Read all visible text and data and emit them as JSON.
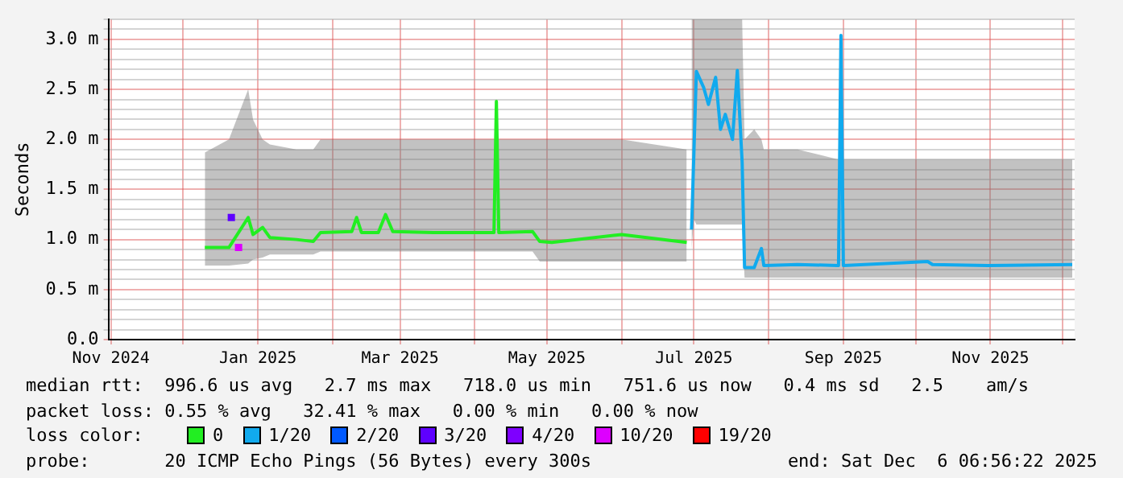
{
  "chart_data": {
    "type": "line",
    "ylabel": "Seconds",
    "legend_title": "loss color:",
    "legend": "bottom",
    "grid": true,
    "line_style": "solid",
    "xlim": [
      "2024-10-31",
      "2025-12-06"
    ],
    "xticks": [
      {
        "value": "2024-11-01",
        "label": "Nov 2024"
      },
      {
        "value": "2024-12-01",
        "label": null
      },
      {
        "value": "2025-01-01",
        "label": "Jan 2025"
      },
      {
        "value": "2025-02-01",
        "label": null
      },
      {
        "value": "2025-03-01",
        "label": "Mar 2025"
      },
      {
        "value": "2025-04-01",
        "label": null
      },
      {
        "value": "2025-05-01",
        "label": "May 2025"
      },
      {
        "value": "2025-06-01",
        "label": null
      },
      {
        "value": "2025-07-01",
        "label": "Jul 2025"
      },
      {
        "value": "2025-08-01",
        "label": null
      },
      {
        "value": "2025-09-01",
        "label": "Sep 2025"
      },
      {
        "value": "2025-10-01",
        "label": null
      },
      {
        "value": "2025-11-01",
        "label": "Nov 2025"
      },
      {
        "value": "2025-12-01",
        "label": null
      }
    ],
    "ylim": [
      0,
      3.2
    ],
    "yticks": [
      {
        "value": 0,
        "label": "0.0"
      },
      {
        "value": 0.1,
        "label": null
      },
      {
        "value": 0.2,
        "label": null
      },
      {
        "value": 0.3,
        "label": null
      },
      {
        "value": 0.4,
        "label": null
      },
      {
        "value": 0.5,
        "label": "0.5 m"
      },
      {
        "value": 0.6,
        "label": null
      },
      {
        "value": 0.7,
        "label": null
      },
      {
        "value": 0.8,
        "label": null
      },
      {
        "value": 0.9,
        "label": null
      },
      {
        "value": 1.0,
        "label": "1.0 m"
      },
      {
        "value": 1.1,
        "label": null
      },
      {
        "value": 1.2,
        "label": null
      },
      {
        "value": 1.3,
        "label": null
      },
      {
        "value": 1.4,
        "label": null
      },
      {
        "value": 1.5,
        "label": "1.5 m"
      },
      {
        "value": 1.6,
        "label": null
      },
      {
        "value": 1.7,
        "label": null
      },
      {
        "value": 1.8,
        "label": null
      },
      {
        "value": 1.9,
        "label": null
      },
      {
        "value": 2.0,
        "label": "2.0 m"
      },
      {
        "value": 2.1,
        "label": null
      },
      {
        "value": 2.2,
        "label": null
      },
      {
        "value": 2.3,
        "label": null
      },
      {
        "value": 2.4,
        "label": null
      },
      {
        "value": 2.5,
        "label": "2.5 m"
      },
      {
        "value": 2.6,
        "label": null
      },
      {
        "value": 2.7,
        "label": null
      },
      {
        "value": 2.8,
        "label": null
      },
      {
        "value": 2.9,
        "label": null
      },
      {
        "value": 3.0,
        "label": "3.0 m"
      },
      {
        "value": 3.1,
        "label": null
      },
      {
        "value": 3.2,
        "label": null
      }
    ],
    "series": [
      {
        "name": "0",
        "color": "#22ee22",
        "x": [
          "2024-12-10",
          "2024-12-20",
          "2024-12-28",
          "2024-12-30",
          "2025-01-03",
          "2025-01-06",
          "2025-01-17",
          "2025-01-24",
          "2025-01-27",
          "2025-02-09",
          "2025-02-11",
          "2025-02-13",
          "2025-02-20",
          "2025-02-23",
          "2025-02-26",
          "2025-03-15",
          "2025-04-09",
          "2025-04-10",
          "2025-04-11",
          "2025-04-25",
          "2025-04-28",
          "2025-05-03",
          "2025-06-01",
          "2025-06-28"
        ],
        "values": [
          0.92,
          0.92,
          1.22,
          1.05,
          1.12,
          1.02,
          1.0,
          0.98,
          1.07,
          1.08,
          1.22,
          1.07,
          1.07,
          1.25,
          1.08,
          1.07,
          1.07,
          2.38,
          1.07,
          1.08,
          0.98,
          0.97,
          1.05,
          0.97
        ],
        "lower": [
          0.74,
          0.74,
          0.76,
          0.8,
          0.82,
          0.85,
          0.85,
          0.85,
          0.88,
          0.88,
          0.88,
          0.88,
          0.88,
          0.88,
          0.88,
          0.88,
          0.88,
          0.88,
          0.88,
          0.88,
          0.78,
          0.78,
          0.78,
          0.78
        ],
        "upper": [
          1.87,
          2.0,
          2.5,
          2.2,
          2.0,
          1.95,
          1.9,
          1.9,
          2.0,
          2.0,
          2.0,
          2.0,
          2.0,
          2.0,
          2.0,
          2.0,
          2.0,
          2.0,
          2.0,
          2.0,
          2.0,
          2.0,
          2.0,
          1.9
        ]
      },
      {
        "name": "1/20",
        "color": "#11aaee",
        "x": [
          "2025-06-30",
          "2025-07-01",
          "2025-07-02",
          "2025-07-05",
          "2025-07-07",
          "2025-07-10",
          "2025-07-12",
          "2025-07-14",
          "2025-07-17",
          "2025-07-19",
          "2025-07-21",
          "2025-07-22",
          "2025-07-26",
          "2025-07-29",
          "2025-07-30",
          "2025-08-13",
          "2025-08-30",
          "2025-08-31",
          "2025-09-01",
          "2025-10-06",
          "2025-10-08",
          "2025-10-31",
          "2025-12-05"
        ],
        "values": [
          1.1,
          1.89,
          2.68,
          2.52,
          2.35,
          2.62,
          2.1,
          2.25,
          2.0,
          2.69,
          1.77,
          0.72,
          0.72,
          0.91,
          0.74,
          0.75,
          0.74,
          3.04,
          0.74,
          0.78,
          0.75,
          0.74,
          0.75
        ],
        "lower": [
          0.9,
          1.2,
          1.15,
          1.15,
          1.15,
          1.15,
          1.15,
          1.15,
          1.15,
          1.15,
          1.15,
          0.62,
          0.62,
          0.62,
          0.62,
          0.62,
          0.62,
          0.62,
          0.62,
          0.62,
          0.62,
          0.62,
          0.62
        ],
        "upper": [
          3.2,
          3.2,
          3.2,
          3.2,
          3.2,
          3.2,
          3.2,
          3.2,
          3.2,
          3.2,
          3.2,
          2.0,
          2.1,
          2.0,
          1.9,
          1.9,
          1.8,
          1.8,
          1.8,
          1.8,
          1.8,
          1.8,
          1.8
        ]
      },
      {
        "name": "2/20",
        "color": "#0059ff"
      },
      {
        "name": "3/20",
        "color": "#5e00ff",
        "type": "scatter",
        "marker": "square",
        "x": [
          "2024-12-21"
        ],
        "values": [
          1.22
        ]
      },
      {
        "name": "4/20",
        "color": "#7e00ff"
      },
      {
        "name": "10/20",
        "color": "#dd00ff",
        "type": "scatter",
        "marker": "square",
        "x": [
          "2024-12-24"
        ],
        "values": [
          0.92
        ]
      },
      {
        "name": "19/20",
        "color": "#ff0000"
      }
    ],
    "annotations": [
      "median rtt:  996.6 us avg   2.7 ms max   718.0 us min   751.6 us now   0.4 ms sd   2.5    am/s",
      "packet loss: 0.55 % avg   32.41 % max   0.00 % min   0.00 % now",
      "probe:       20 ICMP Echo Pings (56 Bytes) every 300s",
      "end: Sat Dec  6 06:56:22 2025"
    ]
  }
}
